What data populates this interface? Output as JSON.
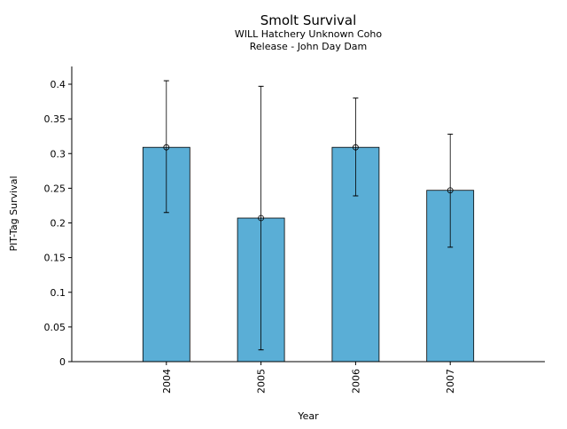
{
  "chart_data": {
    "type": "bar",
    "title": "Smolt Survival",
    "subtitle_lines": [
      "WILL Hatchery Unknown Coho",
      "Release - John Day Dam"
    ],
    "xlabel": "Year",
    "ylabel": "PIT-Tag Survival",
    "categories": [
      "2004",
      "2005",
      "2006",
      "2007"
    ],
    "values": [
      0.309,
      0.207,
      0.309,
      0.247
    ],
    "error_upper": [
      0.405,
      0.397,
      0.38,
      0.328
    ],
    "error_lower": [
      0.215,
      0.017,
      0.239,
      0.165
    ],
    "ylim": [
      0,
      0.425
    ],
    "yticks": [
      "0",
      "0.05",
      "0.1",
      "0.15",
      "0.2",
      "0.25",
      "0.3",
      "0.35",
      "0.4"
    ],
    "grid": false,
    "bar_color": "#5aaed6",
    "edge_color": "#000000"
  }
}
